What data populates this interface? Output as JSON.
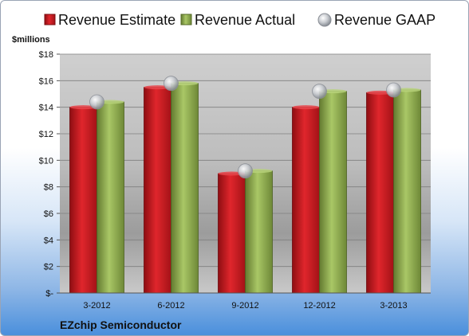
{
  "chart_data": {
    "type": "bar",
    "title": "",
    "unit_label": "$millions",
    "company": "EZchip Semiconductor",
    "categories": [
      "3-2012",
      "6-2012",
      "9-2012",
      "12-2012",
      "3-2013"
    ],
    "series": [
      {
        "name": "Revenue Estimate",
        "kind": "bar",
        "color": "#c8161d",
        "values": [
          14.0,
          15.5,
          9.0,
          14.0,
          15.1
        ]
      },
      {
        "name": "Revenue Actual",
        "kind": "bar",
        "color": "#8fae4a",
        "values": [
          14.4,
          15.8,
          9.2,
          15.2,
          15.3
        ]
      },
      {
        "name": "Revenue GAAP",
        "kind": "marker",
        "color": "#b8bcc2",
        "values": [
          14.4,
          15.8,
          9.2,
          15.2,
          15.3
        ]
      }
    ],
    "y_ticks": [
      "$-",
      "$2",
      "$4",
      "$6",
      "$8",
      "$10",
      "$12",
      "$14",
      "$16",
      "$18"
    ],
    "ylim": [
      0,
      18
    ],
    "grid": true,
    "legend_position": "top"
  }
}
